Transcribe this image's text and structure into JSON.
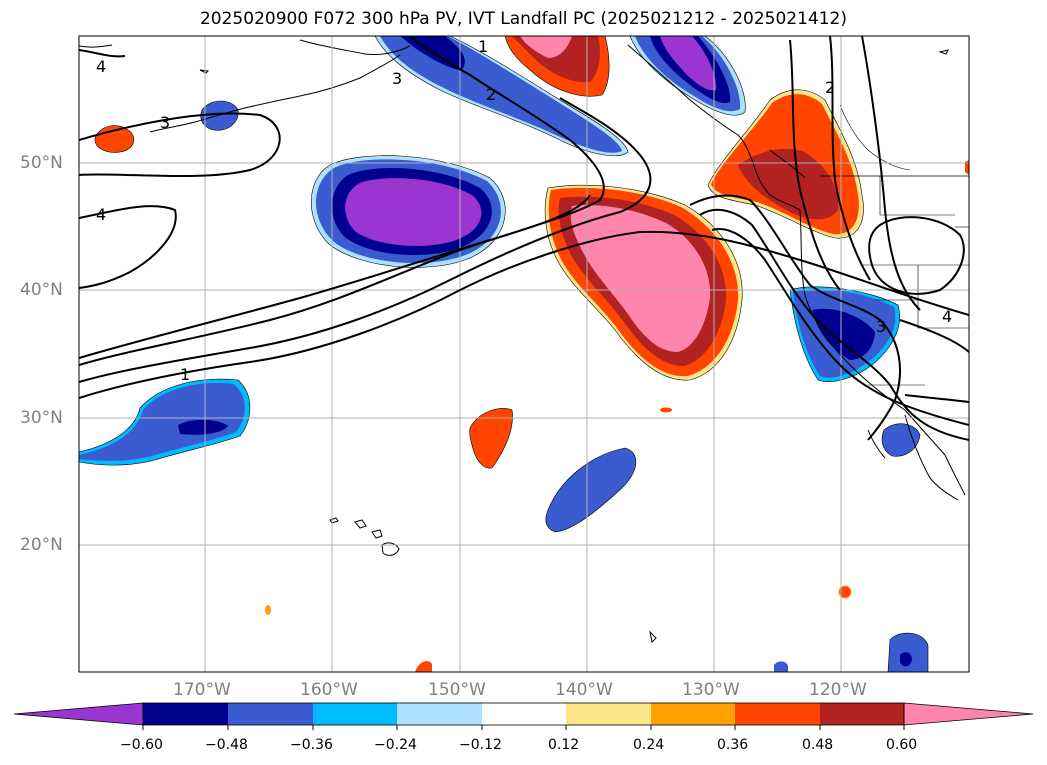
{
  "title": "2025020900 F072 300 hPa PV, IVT Landfall PC (2025021212 - 2025021412)",
  "map": {
    "lat_labels": [
      "50°N",
      "40°N",
      "30°N",
      "20°N"
    ],
    "lon_labels": [
      "170°W",
      "160°W",
      "150°W",
      "140°W",
      "130°W",
      "120°W"
    ],
    "lon_range": [
      -180,
      -110
    ],
    "lat_range": [
      10,
      60
    ],
    "grid_lines": true,
    "contour_labels": [
      "4",
      "3",
      "4",
      "1",
      "2",
      "1",
      "3",
      "2",
      "3",
      "4"
    ]
  },
  "colorbar": {
    "ticks": [
      "−0.60",
      "−0.48",
      "−0.36",
      "−0.24",
      "−0.12",
      "0.12",
      "0.24",
      "0.36",
      "0.48",
      "0.60"
    ],
    "colors": [
      "#9b35d2",
      "#00008f",
      "#3b5bd0",
      "#00bbff",
      "#aee1ff",
      "#ffffff",
      "#fde68a",
      "#ffa000",
      "#ff4500",
      "#b22222",
      "#ff85ad"
    ]
  }
}
